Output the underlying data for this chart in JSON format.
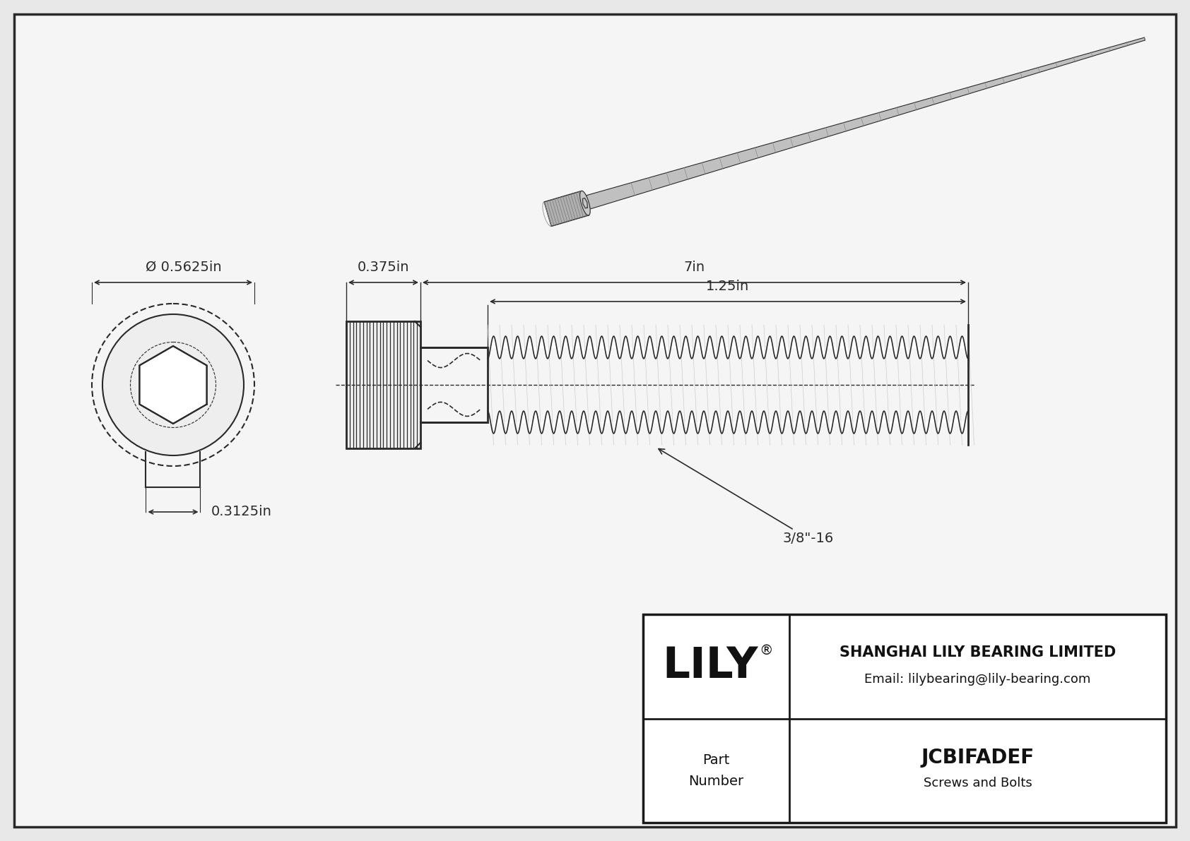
{
  "bg_color": "#e8e8e8",
  "drawing_bg": "#f5f5f5",
  "border_color": "#2a2a2a",
  "line_color": "#2a2a2a",
  "dim_color": "#2a2a2a",
  "title": "JCBIFADEF",
  "subtitle": "Screws and Bolts",
  "company": "SHANGHAI LILY BEARING LIMITED",
  "email": "Email: lilybearing@lily-bearing.com",
  "logo": "LILY",
  "logo_reg": "®",
  "dim_outer_dia": "Ø 0.5625in",
  "dim_head_width": "0.3125in",
  "dim_head_length": "0.375in",
  "dim_total_length": "7in",
  "dim_thread_length": "1.25in",
  "dim_thread_spec": "3/8\"-16"
}
